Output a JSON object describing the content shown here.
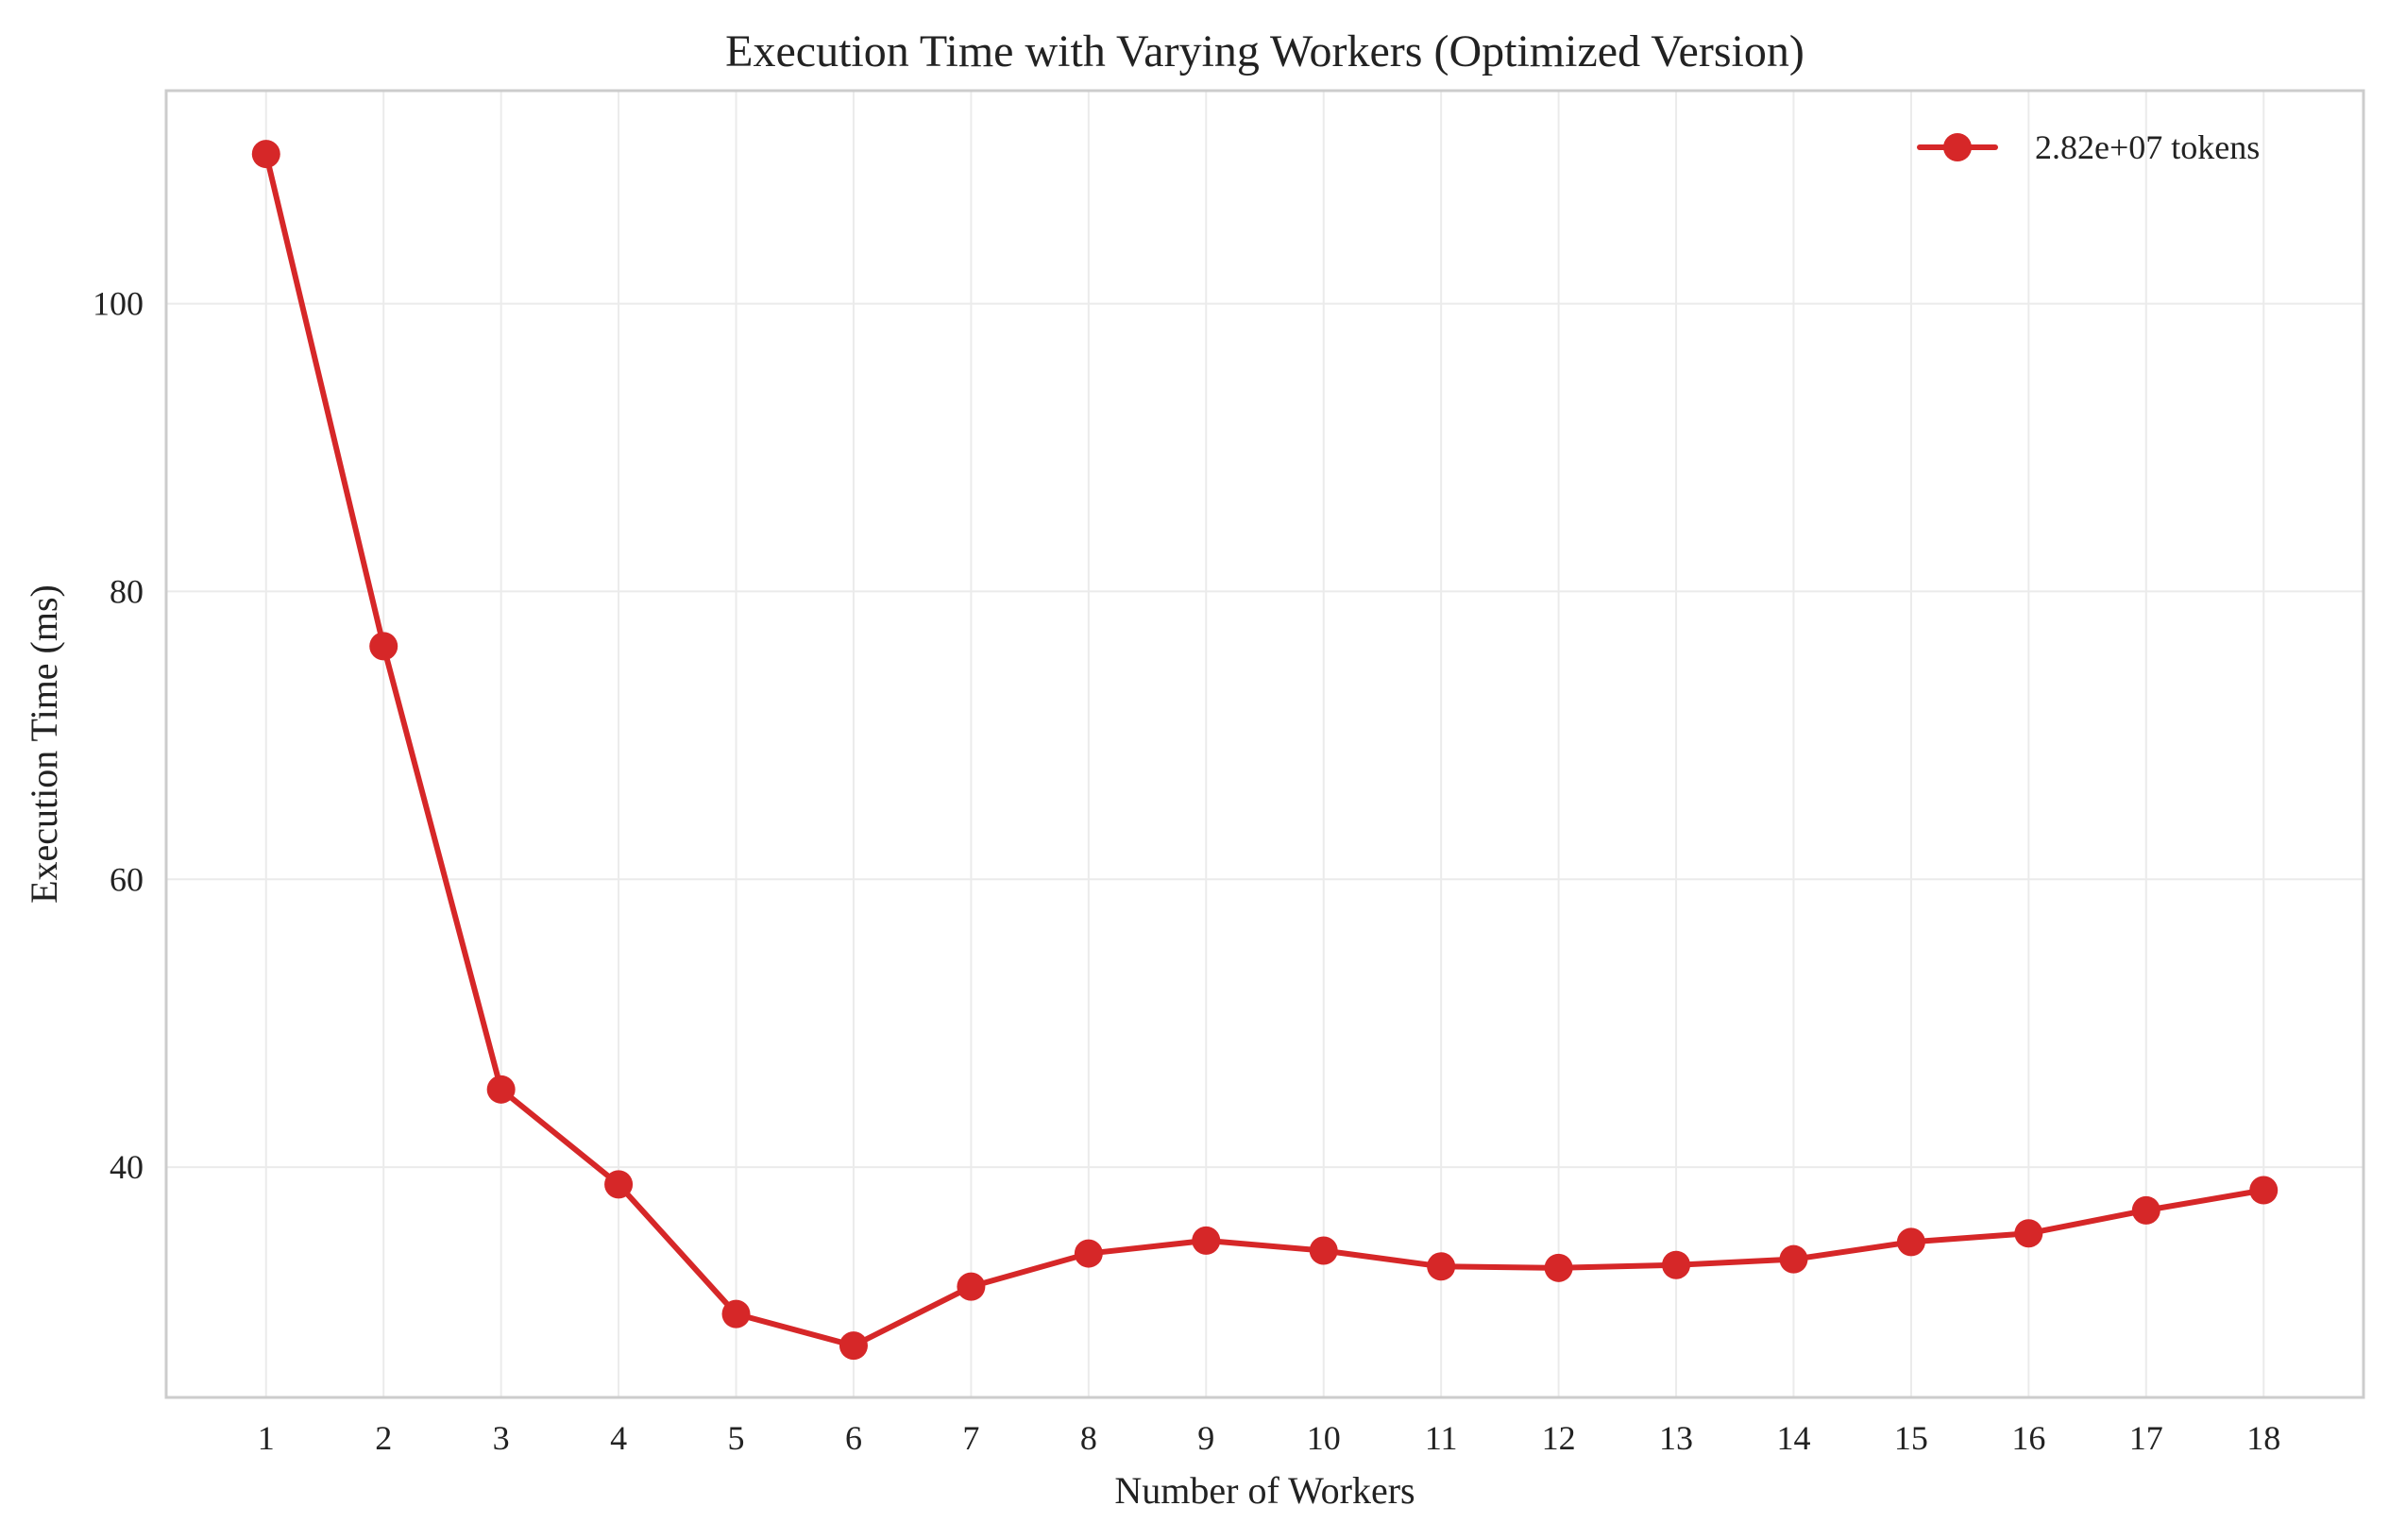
{
  "chart_data": {
    "type": "line",
    "title": "Execution Time with Varying Workers (Optimized Version)",
    "xlabel": "Number of Workers",
    "ylabel": "Execution Time (ms)",
    "x": [
      1,
      2,
      3,
      4,
      5,
      6,
      7,
      8,
      9,
      10,
      11,
      12,
      13,
      14,
      15,
      16,
      17,
      18
    ],
    "x_tick_labels": [
      "1",
      "2",
      "3",
      "4",
      "5",
      "6",
      "7",
      "8",
      "9",
      "10",
      "11",
      "12",
      "13",
      "14",
      "15",
      "16",
      "17",
      "18"
    ],
    "y_ticks": [
      40,
      60,
      80,
      100
    ],
    "y_tick_labels": [
      "40",
      "60",
      "80",
      "100"
    ],
    "xlim": [
      0.15,
      18.85
    ],
    "ylim": [
      24.0,
      114.8
    ],
    "grid": true,
    "legend_position": "top-right",
    "series": [
      {
        "name": "2.82e+07 tokens",
        "color": "#d62728",
        "values": [
          110.4,
          76.2,
          45.4,
          38.8,
          29.8,
          27.6,
          31.7,
          34.0,
          34.9,
          34.2,
          33.1,
          33.0,
          33.2,
          33.6,
          34.8,
          35.4,
          37.0,
          38.4
        ]
      }
    ]
  }
}
